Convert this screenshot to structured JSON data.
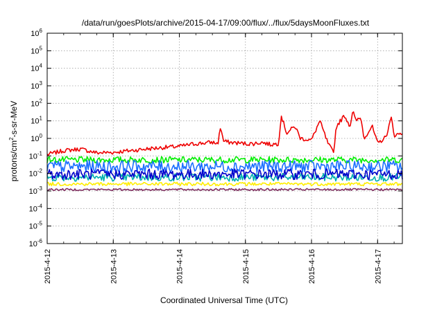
{
  "chart_data": {
    "type": "line",
    "title": "/data/run/goesPlots/archive/2015-04-17/09:00/flux/../flux/5daysMoonFluxes.txt",
    "xlabel": "Coordinated Universal Time (UTC)",
    "ylabel": "protons/cm²-s-sr-MeV",
    "yscale": "log",
    "ylim": [
      1e-06,
      1000000.0
    ],
    "xlim": [
      "2015-04-12",
      "2015-04-17 09:00"
    ],
    "x_ticks": [
      "2015-4-12",
      "2015-4-13",
      "2015-4-14",
      "2015-4-15",
      "2015-4-16",
      "2015-4-17"
    ],
    "y_ticks": [
      {
        "base": "10",
        "exp": "-6"
      },
      {
        "base": "10",
        "exp": "-5"
      },
      {
        "base": "10",
        "exp": "-4"
      },
      {
        "base": "10",
        "exp": "-3"
      },
      {
        "base": "10",
        "exp": "-2"
      },
      {
        "base": "10",
        "exp": "-1"
      },
      {
        "base": "10",
        "exp": "0"
      },
      {
        "base": "10",
        "exp": "1"
      },
      {
        "base": "10",
        "exp": "2"
      },
      {
        "base": "10",
        "exp": "3"
      },
      {
        "base": "10",
        "exp": "4"
      },
      {
        "base": "10",
        "exp": "5"
      },
      {
        "base": "10",
        "exp": "6"
      }
    ],
    "grid": true,
    "series": [
      {
        "color": "#ee0000",
        "x": [
          "2015-04-12 00:00",
          "2015-04-12 06:00",
          "2015-04-12 12:00",
          "2015-04-12 18:00",
          "2015-04-13 00:00",
          "2015-04-13 06:00",
          "2015-04-13 12:00",
          "2015-04-13 18:00",
          "2015-04-14 00:00",
          "2015-04-14 06:00",
          "2015-04-14 12:00",
          "2015-04-14 14:00",
          "2015-04-14 15:00",
          "2015-04-14 16:00",
          "2015-04-14 18:00",
          "2015-04-15 00:00",
          "2015-04-15 03:00",
          "2015-04-15 06:00",
          "2015-04-15 09:00",
          "2015-04-15 12:00",
          "2015-04-15 13:00",
          "2015-04-15 15:00",
          "2015-04-15 18:00",
          "2015-04-15 20:00",
          "2015-04-16 00:00",
          "2015-04-16 03:00",
          "2015-04-16 06:00",
          "2015-04-16 08:00",
          "2015-04-16 09:00",
          "2015-04-16 12:00",
          "2015-04-16 14:00",
          "2015-04-16 15:00",
          "2015-04-16 16:00",
          "2015-04-16 18:00",
          "2015-04-16 19:00",
          "2015-04-16 22:00",
          "2015-04-17 00:00",
          "2015-04-17 03:00",
          "2015-04-17 05:00",
          "2015-04-17 06:00",
          "2015-04-17 09:00"
        ],
        "values": [
          0.12,
          0.2,
          0.25,
          0.15,
          0.16,
          0.2,
          0.25,
          0.3,
          0.35,
          0.5,
          0.6,
          0.5,
          5,
          0.7,
          0.6,
          0.5,
          0.5,
          0.6,
          0.45,
          0.5,
          20,
          2,
          5,
          1,
          0.8,
          10,
          0.5,
          0.15,
          5,
          20,
          5,
          40,
          10,
          15,
          1,
          5,
          0.5,
          1.2,
          15,
          1.5,
          2
        ]
      },
      {
        "color": "#00ee00",
        "x": [
          "2015-04-12 00:00",
          "2015-04-17 09:00"
        ],
        "values": [
          0.06,
          0.06
        ]
      },
      {
        "color": "#00b0b0",
        "x": [
          "2015-04-12 00:00",
          "2015-04-17 09:00"
        ],
        "values": [
          0.006,
          0.006
        ]
      },
      {
        "color": "#1a6fff",
        "x": [
          "2015-04-12 00:00",
          "2015-04-17 09:00"
        ],
        "values": [
          0.025,
          0.025
        ]
      },
      {
        "color": "#0000cc",
        "x": [
          "2015-04-12 00:00",
          "2015-04-17 09:00"
        ],
        "values": [
          0.009,
          0.009
        ]
      },
      {
        "color": "#ffee00",
        "x": [
          "2015-04-12 00:00",
          "2015-04-17 09:00"
        ],
        "values": [
          0.0025,
          0.0025
        ]
      },
      {
        "color": "#803060",
        "x": [
          "2015-04-12 00:00",
          "2015-04-17 09:00"
        ],
        "values": [
          0.0012,
          0.0012
        ]
      }
    ]
  }
}
